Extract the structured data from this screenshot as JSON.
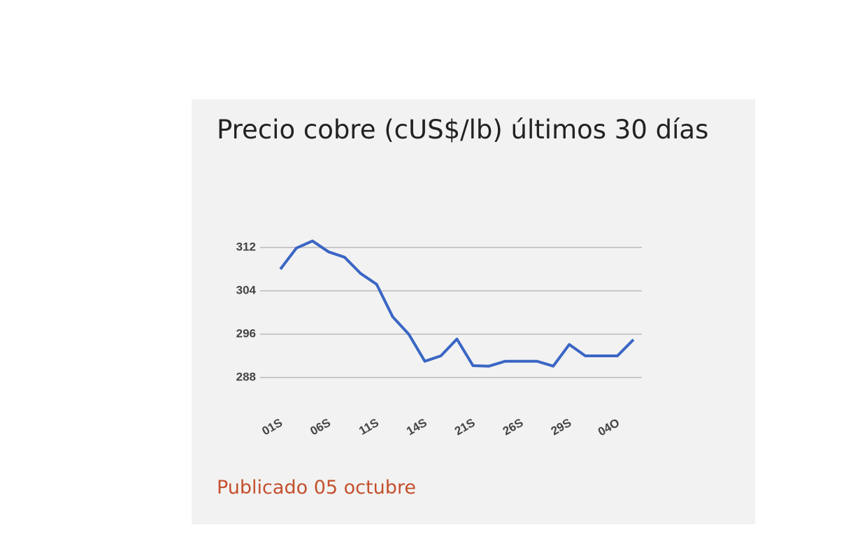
{
  "chart_data": {
    "type": "line",
    "title": "Precio cobre (cUS$/lb) últimos 30 días",
    "footer": "Publicado 05 octubre",
    "categories": [
      "01S",
      null,
      null,
      "06S",
      null,
      null,
      "11S",
      null,
      null,
      "14S",
      null,
      null,
      "21S",
      null,
      null,
      "26S",
      null,
      null,
      "29S",
      null,
      null,
      "04O",
      null
    ],
    "series": [
      {
        "name": "Precio cobre",
        "color": "#3a66c4",
        "values": [
          308,
          311.9,
          313.2,
          311.2,
          310.2,
          307.2,
          305.2,
          299.2,
          296,
          291,
          292,
          295.1,
          290.2,
          290.1,
          291,
          291,
          291,
          290.1,
          294.1,
          292,
          292,
          292,
          295
        ]
      }
    ],
    "ylim": [
      285,
      315
    ],
    "yticks": [
      288,
      296,
      304,
      312
    ],
    "grid": true
  }
}
